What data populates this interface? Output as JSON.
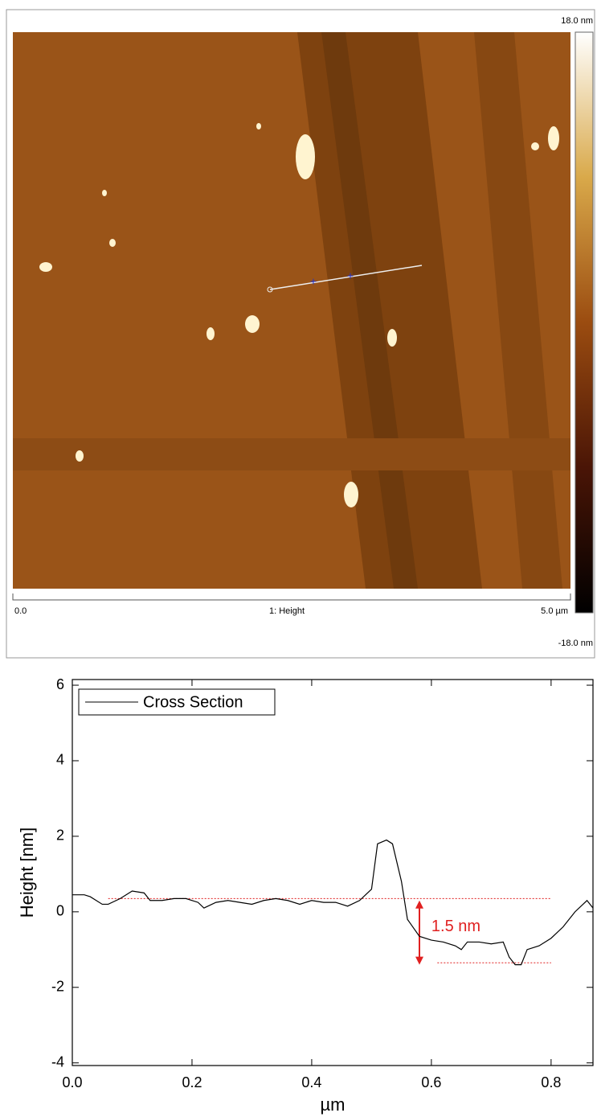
{
  "afm_image": {
    "color_max": "18.0 nm",
    "color_min": "-18.0 nm",
    "scale_start": "0.0",
    "channel": "1: Height",
    "scale_end": "5.0 µm"
  },
  "chart_data": {
    "type": "line",
    "x": [
      0,
      0.02,
      0.03,
      0.05,
      0.06,
      0.08,
      0.1,
      0.12,
      0.13,
      0.15,
      0.17,
      0.19,
      0.21,
      0.22,
      0.24,
      0.26,
      0.28,
      0.3,
      0.32,
      0.34,
      0.36,
      0.38,
      0.4,
      0.42,
      0.44,
      0.46,
      0.48,
      0.5,
      0.51,
      0.525,
      0.535,
      0.55,
      0.56,
      0.58,
      0.6,
      0.62,
      0.64,
      0.65,
      0.66,
      0.68,
      0.7,
      0.72,
      0.73,
      0.74,
      0.75,
      0.76,
      0.78,
      0.8,
      0.82,
      0.84,
      0.86,
      0.87
    ],
    "series": [
      {
        "name": "Cross Section",
        "color": "#000000",
        "values": [
          0.45,
          0.45,
          0.4,
          0.2,
          0.2,
          0.35,
          0.55,
          0.5,
          0.3,
          0.3,
          0.35,
          0.35,
          0.25,
          0.1,
          0.25,
          0.3,
          0.25,
          0.2,
          0.3,
          0.35,
          0.3,
          0.2,
          0.3,
          0.25,
          0.25,
          0.15,
          0.3,
          0.6,
          1.8,
          1.9,
          1.8,
          0.8,
          -0.2,
          -0.65,
          -0.75,
          -0.8,
          -0.9,
          -1.0,
          -0.8,
          -0.8,
          -0.85,
          -0.8,
          -1.2,
          -1.4,
          -1.4,
          -1.0,
          -0.9,
          -0.7,
          -0.4,
          0.0,
          0.3,
          0.1
        ]
      }
    ],
    "xlim": [
      0,
      0.87
    ],
    "ylim": [
      -4.07,
      6.15
    ],
    "xticks": [
      {
        "value": 0,
        "label": "0.0"
      },
      0.2,
      0.4,
      0.6,
      0.8
    ],
    "yticks": [
      -4,
      -2,
      0,
      2,
      4,
      6
    ],
    "x_label": "µm",
    "y_label": "Height [nm]",
    "legend": "upper left",
    "reference_lines": [
      {
        "y": 0.35,
        "x_range": [
          0.06,
          0.8
        ]
      },
      {
        "y": -1.35,
        "x_range": [
          0.61,
          0.8
        ]
      }
    ],
    "reference_color": "#e02020",
    "arrow": {
      "x": 0.58,
      "y_range": [
        0.3,
        -1.4
      ]
    },
    "annotation": {
      "text": "1.5 nm",
      "x": 0.6,
      "y": -0.4
    }
  }
}
